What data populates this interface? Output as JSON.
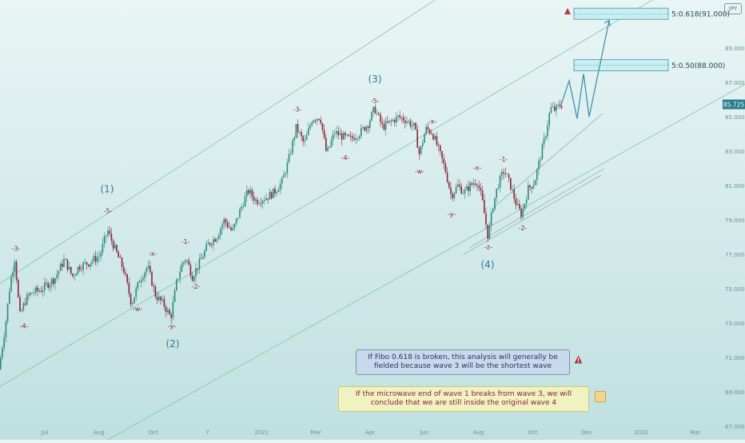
{
  "chart_data": {
    "type": "candlestick",
    "title": "",
    "xlabel": "",
    "ylabel": "",
    "ylim": [
      66.2,
      91.8
    ],
    "grid": false,
    "y_ticks": [
      67.0,
      69.0,
      71.0,
      73.0,
      75.0,
      77.0,
      79.0,
      81.0,
      83.0,
      85.0,
      87.0,
      89.0
    ],
    "x_ticks": [
      "Jul",
      "Aug",
      "Oct",
      "7",
      "2021",
      "Mar",
      "Apr",
      "Jun",
      "Aug",
      "Oct",
      "Dec",
      "2022",
      "Mar"
    ],
    "last_price": "85.725",
    "price_path": [
      [
        0.0,
        70.3
      ],
      [
        8.0,
        72.8
      ],
      [
        14.0,
        75.3
      ],
      [
        20.0,
        76.8
      ],
      [
        26.0,
        73.4
      ],
      [
        34.0,
        74.4
      ],
      [
        42.0,
        74.8
      ],
      [
        52.0,
        74.9
      ],
      [
        62.0,
        75.3
      ],
      [
        70.0,
        75.6
      ],
      [
        82.0,
        76.7
      ],
      [
        92.0,
        75.7
      ],
      [
        100.0,
        76.3
      ],
      [
        112.0,
        76.5
      ],
      [
        126.0,
        76.9
      ],
      [
        136.0,
        78.4
      ],
      [
        146.0,
        77.2
      ],
      [
        156.0,
        76.1
      ],
      [
        166.0,
        74.1
      ],
      [
        176.0,
        75.5
      ],
      [
        186.0,
        76.3
      ],
      [
        196.0,
        74.6
      ],
      [
        206.0,
        74.1
      ],
      [
        215.0,
        73.3
      ],
      [
        222.0,
        75.3
      ],
      [
        228.0,
        76.3
      ],
      [
        234.0,
        76.8
      ],
      [
        242.0,
        75.7
      ],
      [
        252.0,
        76.6
      ],
      [
        262.0,
        77.6
      ],
      [
        272.0,
        78.0
      ],
      [
        282.0,
        79.0
      ],
      [
        292.0,
        78.3
      ],
      [
        302.0,
        79.6
      ],
      [
        312.0,
        80.7
      ],
      [
        322.0,
        80.1
      ],
      [
        334.0,
        80.3
      ],
      [
        344.0,
        80.6
      ],
      [
        354.0,
        81.2
      ],
      [
        362.0,
        82.4
      ],
      [
        372.0,
        84.4
      ],
      [
        382.0,
        83.4
      ],
      [
        392.0,
        84.9
      ],
      [
        402.0,
        85.0
      ],
      [
        410.0,
        82.8
      ],
      [
        420.0,
        84.1
      ],
      [
        432.0,
        83.8
      ],
      [
        440.0,
        83.7
      ],
      [
        452.0,
        84.1
      ],
      [
        462.0,
        84.6
      ],
      [
        470.0,
        85.5
      ],
      [
        480.0,
        84.4
      ],
      [
        490.0,
        84.7
      ],
      [
        500.0,
        85.0
      ],
      [
        510.0,
        84.8
      ],
      [
        520.0,
        84.4
      ],
      [
        526.0,
        82.8
      ],
      [
        534.0,
        84.3
      ],
      [
        542.0,
        84.1
      ],
      [
        550.0,
        83.1
      ],
      [
        558.0,
        82.0
      ],
      [
        566.0,
        80.4
      ],
      [
        574.0,
        81.0
      ],
      [
        582.0,
        80.6
      ],
      [
        590.0,
        81.0
      ],
      [
        598.0,
        81.3
      ],
      [
        604.0,
        80.3
      ],
      [
        612.0,
        78.0
      ],
      [
        618.0,
        79.8
      ],
      [
        624.0,
        81.0
      ],
      [
        632.0,
        81.9
      ],
      [
        640.0,
        81.0
      ],
      [
        648.0,
        79.8
      ],
      [
        654.0,
        79.3
      ],
      [
        662.0,
        80.8
      ],
      [
        670.0,
        81.2
      ],
      [
        678.0,
        82.8
      ],
      [
        684.0,
        84.0
      ],
      [
        690.0,
        85.5
      ],
      [
        696.0,
        85.4
      ],
      [
        702.0,
        85.7
      ]
    ],
    "projection": [
      [
        702.0,
        85.7
      ],
      [
        712.0,
        87.1
      ],
      [
        722.0,
        84.9
      ],
      [
        730.0,
        87.5
      ],
      [
        737.0,
        85.0
      ],
      [
        762.0,
        90.6
      ]
    ],
    "channels": [
      {
        "from": [
          0.0,
          75.3
        ],
        "to": [
          640.0,
          94.7
        ]
      },
      {
        "from": [
          100.0,
          65.3
        ],
        "to": [
          932.0,
          86.9
        ]
      },
      {
        "from": [
          0.0,
          69.3
        ],
        "to": [
          932.0,
          95.0
        ]
      },
      {
        "from": [
          580.0,
          77.0
        ],
        "to": [
          752.0,
          81.6
        ]
      },
      {
        "from": [
          588.0,
          77.4
        ],
        "to": [
          756.0,
          82.0
        ]
      },
      {
        "from": [
          612.0,
          79.5
        ],
        "to": [
          754.0,
          85.2
        ]
      }
    ],
    "fibo_levels": [
      {
        "label": "5:0.618(91.000)",
        "value": 91.0
      },
      {
        "label": "5:0.50(88.000)",
        "value": 88.0
      }
    ],
    "wave_labels": [
      {
        "text": "-3-",
        "x": 20.0,
        "y": 77.2,
        "kind": "minor"
      },
      {
        "text": "-4-",
        "x": 30.0,
        "y": 72.7,
        "kind": "minor"
      },
      {
        "text": "(1)",
        "x": 134.0,
        "y": 80.6,
        "kind": "major"
      },
      {
        "text": "-5-",
        "x": 135.0,
        "y": 79.4,
        "kind": "minor"
      },
      {
        "text": "-x-",
        "x": 191.0,
        "y": 76.9,
        "kind": "minor"
      },
      {
        "text": "-w-",
        "x": 172.0,
        "y": 73.7,
        "kind": "minor"
      },
      {
        "text": "-y-",
        "x": 215.0,
        "y": 72.7,
        "kind": "minor"
      },
      {
        "text": "(2)",
        "x": 216.0,
        "y": 71.6,
        "kind": "major"
      },
      {
        "text": "-1-",
        "x": 232.0,
        "y": 77.6,
        "kind": "minor"
      },
      {
        "text": "-2-",
        "x": 245.0,
        "y": 75.0,
        "kind": "minor"
      },
      {
        "text": "-3-",
        "x": 372.0,
        "y": 85.3,
        "kind": "minor"
      },
      {
        "text": "-4-",
        "x": 432.0,
        "y": 82.5,
        "kind": "minor"
      },
      {
        "text": "(3)",
        "x": 469.0,
        "y": 87.0,
        "kind": "major"
      },
      {
        "text": "-5-",
        "x": 469.0,
        "y": 85.8,
        "kind": "minor"
      },
      {
        "text": "-x-",
        "x": 541.0,
        "y": 84.6,
        "kind": "minor"
      },
      {
        "text": "-w-",
        "x": 525.0,
        "y": 81.7,
        "kind": "minor"
      },
      {
        "text": "-y-",
        "x": 565.0,
        "y": 79.2,
        "kind": "minor"
      },
      {
        "text": "-x-",
        "x": 597.0,
        "y": 81.9,
        "kind": "minor"
      },
      {
        "text": "-1-",
        "x": 630.0,
        "y": 82.4,
        "kind": "minor"
      },
      {
        "text": "-z-",
        "x": 611.0,
        "y": 77.3,
        "kind": "minor"
      },
      {
        "text": "(4)",
        "x": 610.0,
        "y": 76.2,
        "kind": "major"
      },
      {
        "text": "-2-",
        "x": 654.0,
        "y": 78.4,
        "kind": "minor"
      }
    ],
    "annotations": [
      "If Fibo 0.618 is broken, this analysis will generally be fielded because wave 3 will be the shortest wave",
      "If the microwave end of wave 1 breaks from wave 3, we will conclude that we are still inside the original wave 4"
    ],
    "colors": {
      "up": "#2a8a7a",
      "down": "#8a2438",
      "wave_major": "#2f7a96",
      "wave_minor": "#8a2438",
      "channel": "#7fc6a8",
      "projection": "#3f93b0",
      "fibo_fill": "#c8eef2",
      "fibo_border": "#3f93b0",
      "price_tag": "#2a7a8c",
      "axis_text": "#6f8f96"
    }
  },
  "notes": {
    "fibo": "If Fibo 0.618 is broken, this analysis will generally be fielded because wave 3 will be the shortest wave",
    "micro": "If the microwave end of wave 1 breaks from wave 3, we will conclude that we are still inside the original wave 4"
  },
  "icons": {
    "warning": "warning-triangle-icon",
    "note": "note-icon",
    "logo": "tradingview-badge-icon"
  },
  "logo_text": "JPY"
}
